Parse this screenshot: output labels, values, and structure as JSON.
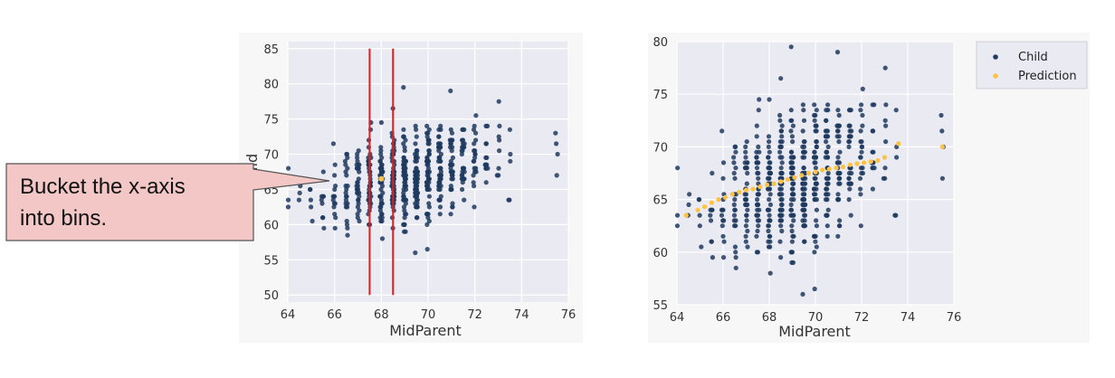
{
  "colors": {
    "panel_bg": "#eaeaf2",
    "grid": "#ffffff",
    "axis_text": "#333333",
    "child_dots": "#1f3a5f",
    "prediction_dots": "#ffc341",
    "bin_lines": "#e02020",
    "callout_fill": "#f4c7c7",
    "callout_border": "#555555"
  },
  "callout": {
    "text_line1": "Bucket the x-axis",
    "text_line2": "into bins."
  },
  "chart_data": [
    {
      "type": "scatter",
      "xlabel": "MidParent",
      "ylabel": "Child",
      "xlim": [
        64,
        76
      ],
      "ylim": [
        49,
        86
      ],
      "xticks": [
        64,
        66,
        68,
        70,
        72,
        74,
        76
      ],
      "yticks": [
        50,
        55,
        60,
        65,
        70,
        75,
        80,
        85
      ],
      "xtick_labels": [
        "64",
        "66",
        "68",
        "70",
        "72",
        "74",
        "76"
      ],
      "ytick_labels": [
        "50",
        "55",
        "60",
        "65",
        "70",
        "75",
        "80",
        "85"
      ],
      "grid": true,
      "vlines": [
        67.5,
        68.5
      ],
      "vline_range": [
        50,
        85
      ],
      "highlight_point": {
        "x": 68.0,
        "y": 66.5
      },
      "series": [
        {
          "name": "Child",
          "color": "#1f3a5f",
          "description": "Galton heights: child height vs midparent height, dense cloud centered near (69, 66)"
        }
      ]
    },
    {
      "type": "scatter",
      "xlabel": "MidParent",
      "ylabel": "",
      "xlim": [
        64,
        76
      ],
      "ylim": [
        55,
        80
      ],
      "xticks": [
        64,
        66,
        68,
        70,
        72,
        74,
        76
      ],
      "yticks": [
        55,
        60,
        65,
        70,
        75,
        80
      ],
      "xtick_labels": [
        "64",
        "66",
        "68",
        "70",
        "72",
        "74",
        "76"
      ],
      "ytick_labels": [
        "55",
        "60",
        "65",
        "70",
        "75",
        "80"
      ],
      "grid": true,
      "legend": {
        "position": "top-right",
        "entries": [
          "Child",
          "Prediction"
        ]
      },
      "series": [
        {
          "name": "Child",
          "color": "#1f3a5f"
        },
        {
          "name": "Prediction",
          "color": "#ffc341",
          "x": [
            64.4,
            64.9,
            65.2,
            65.5,
            65.8,
            66.1,
            66.4,
            66.7,
            67.0,
            67.3,
            67.6,
            67.9,
            68.2,
            68.5,
            68.8,
            69.1,
            69.4,
            69.7,
            70.0,
            70.3,
            70.6,
            70.9,
            71.2,
            71.5,
            71.8,
            72.1,
            72.4,
            72.7,
            73.0,
            73.6,
            75.5
          ],
          "y": [
            63.5,
            64.0,
            64.3,
            64.7,
            65.0,
            65.2,
            65.5,
            65.7,
            65.9,
            66.0,
            66.2,
            66.4,
            66.5,
            66.7,
            66.9,
            67.1,
            67.3,
            67.5,
            67.6,
            67.8,
            67.9,
            68.0,
            68.1,
            68.3,
            68.4,
            68.5,
            68.6,
            68.7,
            69.0,
            70.3,
            70.0
          ]
        }
      ]
    }
  ]
}
